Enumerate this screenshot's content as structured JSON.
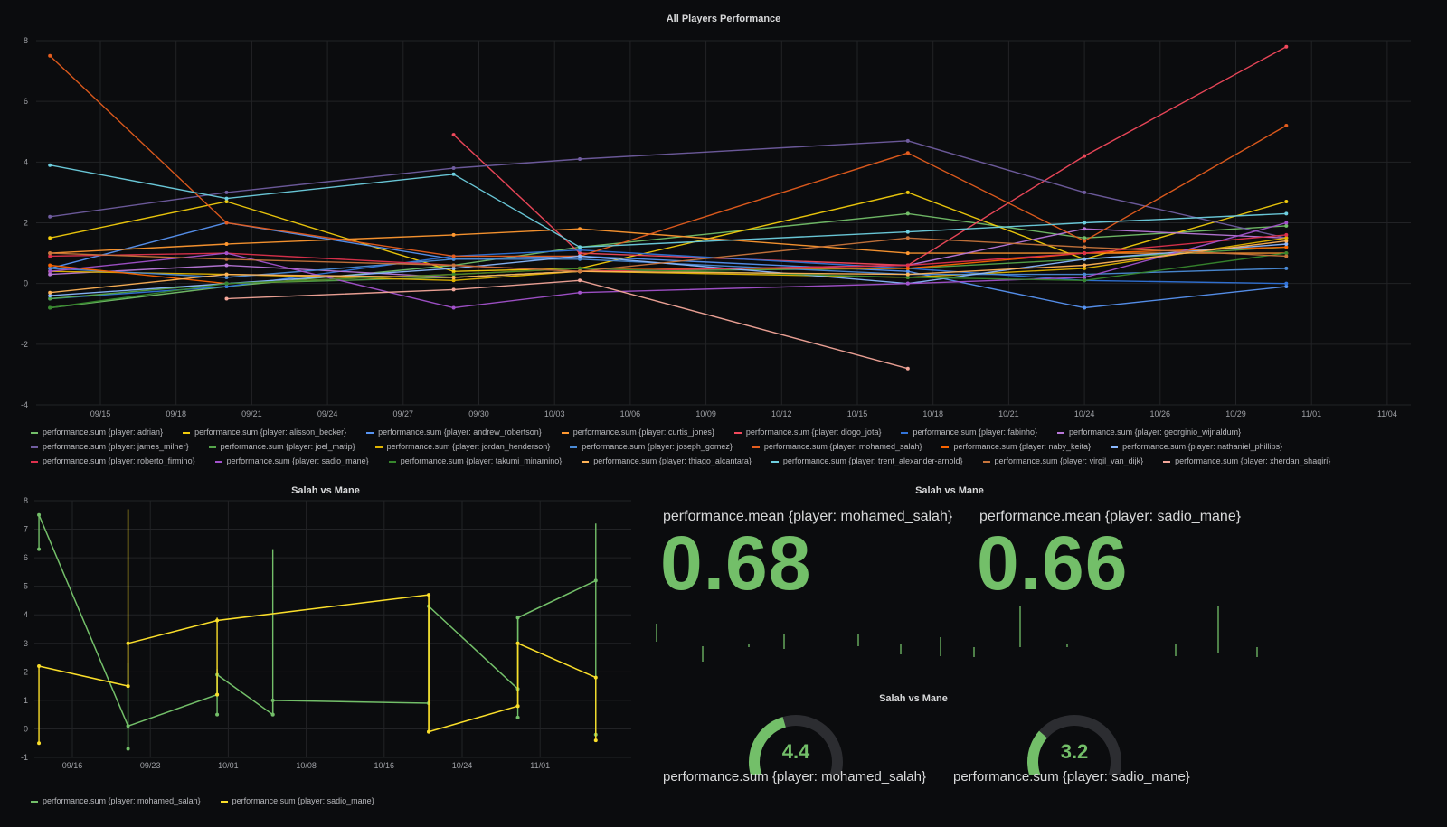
{
  "panels": {
    "all_players": {
      "title": "All Players Performance",
      "legend_prefix": "performance.sum"
    },
    "salah_vs_mane_graph": {
      "title": "Salah vs Mane"
    },
    "salah_vs_mane_stat": {
      "title": "Salah vs Mane",
      "items": [
        {
          "label": "performance.mean {player: mohamed_salah}",
          "value": "0.68"
        },
        {
          "label": "performance.mean {player: sadio_mane}",
          "value": "0.66"
        }
      ]
    },
    "salah_vs_mane_gauge": {
      "title": "Salah vs Mane",
      "items": [
        {
          "label": "performance.sum {player: mohamed_salah}",
          "value": "4.4",
          "fraction": 0.44
        },
        {
          "label": "performance.sum {player: sadio_mane}",
          "value": "3.2",
          "fraction": 0.32
        }
      ]
    }
  },
  "colors": {
    "accent_green": "#73bf69",
    "yellow": "#f2cc0c",
    "grid": "#222326"
  },
  "chart_data": [
    {
      "type": "line",
      "title": "All Players Performance",
      "ylim": [
        -4,
        8
      ],
      "yticks": [
        "8",
        "6",
        "4",
        "2",
        "0",
        "-2",
        "-4"
      ],
      "xticks": [
        "09/15",
        "09/18",
        "09/21",
        "09/24",
        "09/27",
        "09/30",
        "10/03",
        "10/06",
        "10/09",
        "10/12",
        "10/15",
        "10/18",
        "10/21",
        "10/24",
        "10/26",
        "10/29",
        "11/01",
        "11/04"
      ],
      "x_dates": [
        "09/13",
        "09/20",
        "09/29",
        "10/04",
        "10/17",
        "10/24",
        "11/01"
      ],
      "legend": [
        "performance.sum {player: adrian}",
        "performance.sum {player: alisson_becker}",
        "performance.sum {player: andrew_robertson}",
        "performance.sum {player: curtis_jones}",
        "performance.sum {player: diogo_jota}",
        "performance.sum {player: fabinho}",
        "performance.sum {player: georginio_wijnaldum}",
        "performance.sum {player: james_milner}",
        "performance.sum {player: joel_matip}",
        "performance.sum {player: jordan_henderson}",
        "performance.sum {player: joseph_gomez}",
        "performance.sum {player: mohamed_salah}",
        "performance.sum {player: naby_keita}",
        "performance.sum {player: nathaniel_phillips}",
        "performance.sum {player: roberto_firmino}",
        "performance.sum {player: sadio_mane}",
        "performance.sum {player: takumi_minamino}",
        "performance.sum {player: thiago_alcantara}",
        "performance.sum {player: trent_alexander-arnold}",
        "performance.sum {player: virgil_van_dijk}",
        "performance.sum {player: xherdan_shaqiri}"
      ],
      "series": [
        {
          "name": "adrian",
          "color": "#73bf69",
          "values": [
            -0.8,
            -0.1,
            0.6,
            1.2,
            2.3,
            1.5,
            1.9
          ]
        },
        {
          "name": "alisson_becker",
          "color": "#f2cc0c",
          "values": [
            1.5,
            2.7,
            0.4,
            0.5,
            3.0,
            0.8,
            2.7
          ]
        },
        {
          "name": "andrew_robertson",
          "color": "#5794f2",
          "values": [
            0.5,
            2.0,
            0.8,
            0.9,
            0.4,
            -0.8,
            -0.1
          ]
        },
        {
          "name": "curtis_jones",
          "color": "#ff9830",
          "values": [
            1.0,
            1.3,
            1.6,
            1.8,
            1.0,
            1.0,
            1.0
          ]
        },
        {
          "name": "diogo_jota",
          "color": "#f2495c",
          "values": [
            null,
            null,
            4.9,
            1.0,
            0.6,
            4.2,
            7.8
          ]
        },
        {
          "name": "fabinho",
          "color": "#3274d9",
          "values": [
            -0.5,
            -0.1,
            0.9,
            1.1,
            0.5,
            0.1,
            0.0
          ]
        },
        {
          "name": "georginio_wijnaldum",
          "color": "#b877d9",
          "values": [
            0.3,
            0.6,
            0.2,
            0.4,
            0.6,
            1.8,
            1.5
          ]
        },
        {
          "name": "james_milner",
          "color": "#705da0",
          "values": [
            2.2,
            3.0,
            3.8,
            4.1,
            4.7,
            3.0,
            1.5
          ]
        },
        {
          "name": "joel_matip",
          "color": "#56a64b",
          "values": [
            -0.5,
            0.0,
            0.2,
            0.4,
            0.5,
            0.8,
            1.2
          ]
        },
        {
          "name": "jordan_henderson",
          "color": "#e0b400",
          "values": [
            0.4,
            0.3,
            0.1,
            0.4,
            0.2,
            0.5,
            1.5
          ]
        },
        {
          "name": "joseph_gomez",
          "color": "#4b8bd6",
          "values": [
            0.5,
            0.2,
            0.8,
            0.8,
            0.3,
            0.3,
            0.5
          ]
        },
        {
          "name": "mohamed_salah",
          "color": "#e55d1e",
          "values": [
            7.5,
            2.0,
            0.9,
            0.9,
            4.3,
            1.4,
            5.2
          ]
        },
        {
          "name": "naby_keita",
          "color": "#fa6400",
          "values": [
            0.6,
            0.0,
            0.3,
            0.5,
            0.5,
            1.0,
            1.2
          ]
        },
        {
          "name": "nathaniel_phillips",
          "color": "#8ab8ff",
          "values": [
            -0.4,
            0.0,
            0.5,
            0.9,
            0.0,
            0.8,
            1.3
          ]
        },
        {
          "name": "roberto_firmino",
          "color": "#de314d",
          "values": [
            0.9,
            1.0,
            0.6,
            0.4,
            0.6,
            1.0,
            1.6
          ]
        },
        {
          "name": "sadio_mane",
          "color": "#a352cc",
          "values": [
            0.4,
            1.0,
            -0.8,
            -0.3,
            0.0,
            0.2,
            2.0
          ]
        },
        {
          "name": "takumi_minamino",
          "color": "#37872d",
          "values": [
            -0.8,
            0.0,
            0.3,
            0.5,
            0.2,
            0.1,
            1.0
          ]
        },
        {
          "name": "thiago_alcantara",
          "color": "#ffb357",
          "values": [
            -0.3,
            0.3,
            0.2,
            0.4,
            0.3,
            0.6,
            1.4
          ]
        },
        {
          "name": "trent_alexander-arnold",
          "color": "#6ed0e0",
          "values": [
            3.9,
            2.8,
            3.6,
            1.2,
            1.7,
            2.0,
            2.3
          ]
        },
        {
          "name": "virgil_van_dijk",
          "color": "#c8753c",
          "values": [
            1.0,
            0.8,
            0.6,
            0.4,
            1.5,
            1.2,
            0.9
          ]
        },
        {
          "name": "xherdan_shaqiri",
          "color": "#f4a79a",
          "values": [
            null,
            -0.5,
            -0.2,
            0.1,
            -2.8,
            null,
            null
          ]
        }
      ]
    },
    {
      "type": "line",
      "title": "Salah vs Mane",
      "ylim": [
        -1,
        8
      ],
      "yticks": [
        "8",
        "7",
        "6",
        "5",
        "4",
        "3",
        "2",
        "1",
        "0",
        "-1"
      ],
      "xticks": [
        "09/16",
        "09/23",
        "10/01",
        "10/08",
        "10/16",
        "10/24",
        "11/01"
      ],
      "legend": [
        "performance.sum {player: mohamed_salah}",
        "performance.sum {player: sadio_mane}"
      ],
      "series": [
        {
          "name": "mohamed_salah",
          "color": "#73bf69",
          "points": [
            [
              0,
              7.5
            ],
            [
              8,
              0.1
            ],
            [
              16,
              1.2
            ],
            [
              16,
              1.9
            ],
            [
              21,
              0.5
            ],
            [
              21,
              1.0
            ],
            [
              35,
              0.9
            ],
            [
              35,
              4.3
            ],
            [
              43,
              1.4
            ],
            [
              43,
              3.9
            ],
            [
              50,
              5.2
            ]
          ],
          "spikes": [
            [
              0,
              6.3,
              7.5
            ],
            [
              8,
              -0.7,
              2.3
            ],
            [
              16,
              0.5,
              2.1
            ],
            [
              21,
              0.5,
              6.3
            ],
            [
              35,
              0.9,
              4.3
            ],
            [
              43,
              0.4,
              3.9
            ],
            [
              50,
              -0.2,
              7.2
            ]
          ]
        },
        {
          "name": "sadio_mane",
          "color": "#fade2a",
          "points": [
            [
              0,
              2.2
            ],
            [
              8,
              1.5
            ],
            [
              8,
              3.0
            ],
            [
              16,
              3.8
            ],
            [
              35,
              4.7
            ],
            [
              35,
              -0.1
            ],
            [
              43,
              0.8
            ],
            [
              43,
              3.0
            ],
            [
              50,
              1.8
            ]
          ],
          "spikes": [
            [
              0,
              -0.5,
              2.2
            ],
            [
              8,
              1.5,
              7.7
            ],
            [
              16,
              1.2,
              3.9
            ],
            [
              35,
              -0.1,
              4.7
            ],
            [
              43,
              0.8,
              3.0
            ],
            [
              50,
              -0.4,
              1.8
            ]
          ]
        }
      ]
    }
  ]
}
